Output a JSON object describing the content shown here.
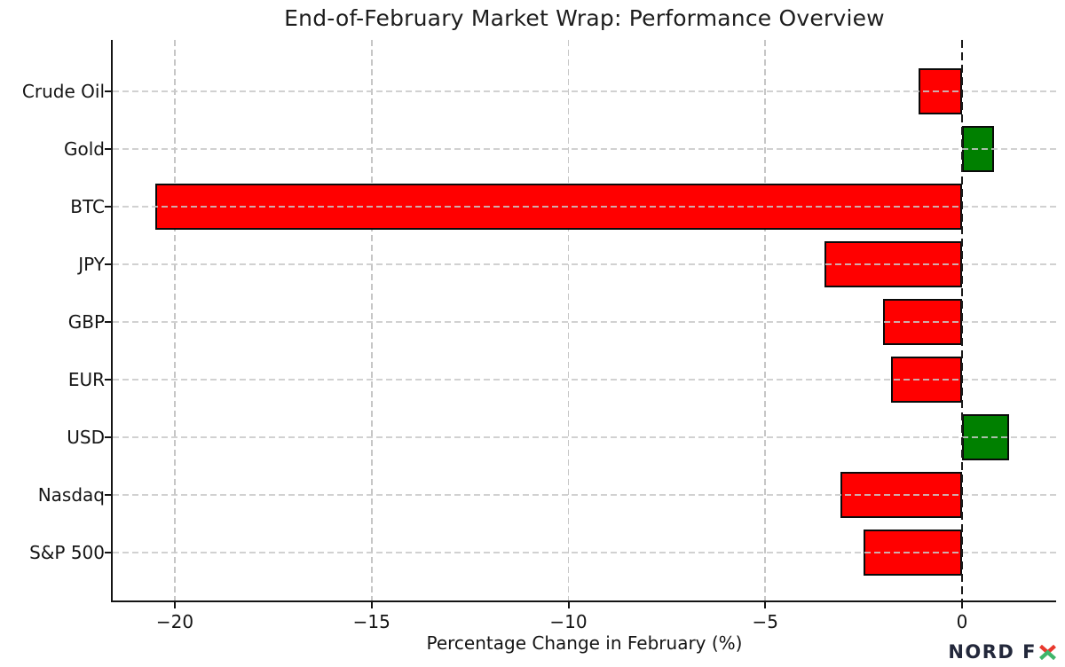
{
  "chart_data": {
    "type": "bar",
    "orientation": "horizontal",
    "title": "End-of-February Market Wrap: Performance Overview",
    "xlabel": "Percentage Change in February (%)",
    "ylabel": "",
    "categories": [
      "Crude Oil",
      "Gold",
      "BTC",
      "JPY",
      "GBP",
      "EUR",
      "USD",
      "Nasdaq",
      "S&P 500"
    ],
    "values": [
      -1.1,
      0.8,
      -20.5,
      -3.5,
      -2.0,
      -1.8,
      1.2,
      -3.1,
      -2.5
    ],
    "xlim": [
      -21.6,
      2.4
    ],
    "xticks": [
      -20,
      -15,
      -10,
      -5,
      0
    ],
    "xtick_labels": [
      "−20",
      "−15",
      "−10",
      "−5",
      "0"
    ],
    "grid": true,
    "legend": "none",
    "zero_line_style": "dashed-black",
    "colors": {
      "positive": "#008000",
      "negative": "#ff0000",
      "bar_edge": "#0a0a0a",
      "gridline": "#c6c6c6",
      "text": "#141414"
    }
  },
  "logo": {
    "full_text": "NORD FX",
    "text_main": "NORD F",
    "x_letter": "X",
    "x_top_color": "#e8382d",
    "x_bottom_color": "#3fb56a",
    "text_color": "#23283b"
  }
}
